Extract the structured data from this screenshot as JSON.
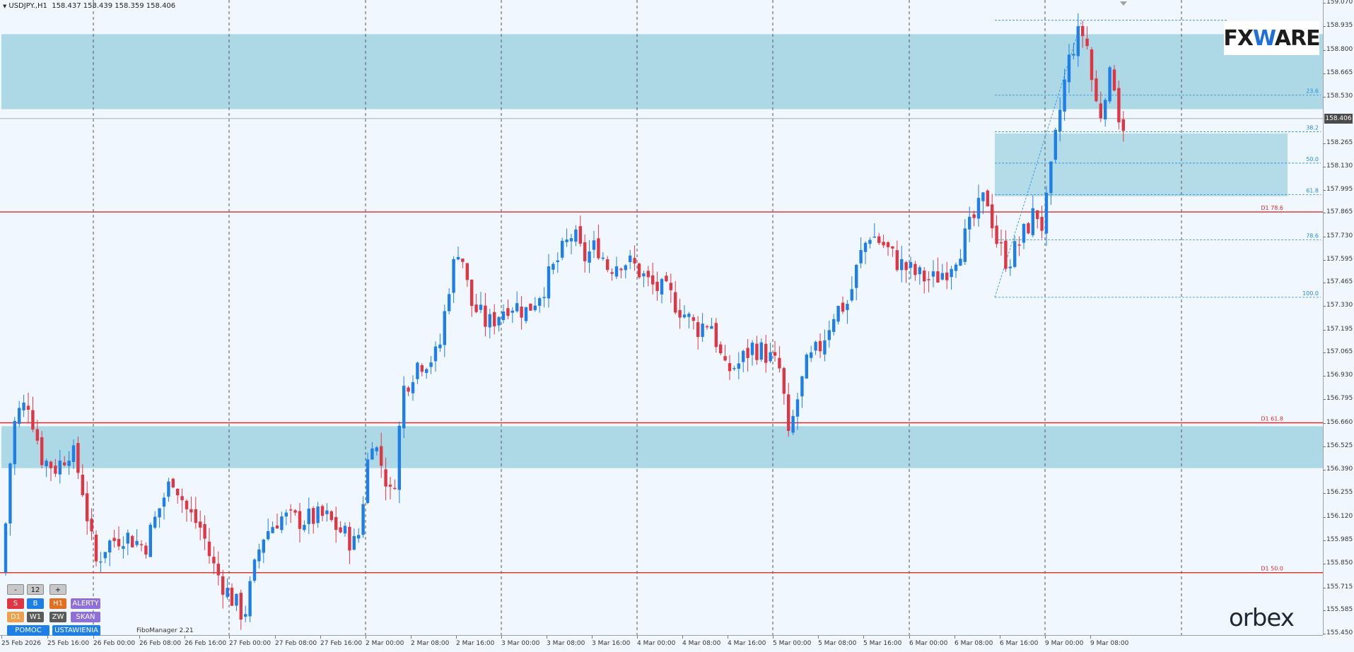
{
  "header": {
    "symbol": "USDJPY.,H1",
    "ohlc": "158.437 158.439 158.359 158.406"
  },
  "logos": {
    "fxmag_left": "FX",
    "fxmag_w": "W",
    "fxmag_right": "ARE",
    "orbex_left": "orbe",
    "orbex_x": "x"
  },
  "price_axis": {
    "labels": [
      "159.070",
      "158.935",
      "158.800",
      "158.665",
      "158.530",
      "158.265",
      "158.130",
      "157.995",
      "157.865",
      "157.730",
      "157.595",
      "157.465",
      "157.330",
      "157.195",
      "157.065",
      "156.930",
      "156.795",
      "156.660",
      "156.525",
      "156.390",
      "156.255",
      "156.120",
      "155.985",
      "155.850",
      "155.715",
      "155.585",
      "155.450"
    ],
    "current_price": "158.406"
  },
  "time_axis": {
    "labels": [
      "25 Feb 2026",
      "25 Feb 16:00",
      "26 Feb 00:00",
      "26 Feb 08:00",
      "26 Feb 16:00",
      "27 Feb 00:00",
      "27 Feb 08:00",
      "27 Feb 16:00",
      "2 Mar 00:00",
      "2 Mar 08:00",
      "2 Mar 16:00",
      "3 Mar 00:00",
      "3 Mar 08:00",
      "3 Mar 16:00",
      "4 Mar 00:00",
      "4 Mar 08:00",
      "4 Mar 16:00",
      "5 Mar 00:00",
      "5 Mar 08:00",
      "5 Mar 16:00",
      "6 Mar 00:00",
      "6 Mar 08:00",
      "6 Mar 16:00",
      "9 Mar 00:00",
      "9 Mar 08:00"
    ]
  },
  "levels": {
    "d1_786": "D1 78.6",
    "d1_618": "D1 61.8",
    "d1_50": "D1 50.0",
    "fib_236": "23.6",
    "fib_382": "38.2",
    "fib_50": "50.0",
    "fib_618": "61.8",
    "fib_786": "78.6",
    "fib_100": "100.0"
  },
  "panel": {
    "minus": "-",
    "value": "12",
    "plus": "+",
    "s": "S",
    "b": "B",
    "h1": "H1",
    "alerty": "ALERTY",
    "d1": "D1",
    "w1": "W1",
    "zw": "ZW",
    "skan": "SKAN",
    "pomoc": "POMOC",
    "ustawienia": "USTAWIENIA"
  },
  "fibo_manager": "FiboManager 2.21",
  "colors": {
    "background": "#f0f7fe",
    "zone": "#add8e6",
    "bull": "#1e7fe6",
    "bear": "#e03644",
    "level_red": "#d92b2b",
    "fib_line": "#2b8ad8"
  },
  "chart_data": {
    "type": "candlestick",
    "instrument": "USDJPY.",
    "timeframe": "H1",
    "ylim": [
      155.45,
      159.07
    ],
    "key_levels": [
      {
        "label": "D1 78.6",
        "value": 157.87
      },
      {
        "label": "D1 61.8",
        "value": 156.66
      },
      {
        "label": "D1 50.0",
        "value": 155.8
      }
    ],
    "fibonacci": [
      {
        "label": "23.6",
        "value": 158.54
      },
      {
        "label": "38.2",
        "value": 158.33
      },
      {
        "label": "50.0",
        "value": 158.15
      },
      {
        "label": "61.8",
        "value": 157.97
      },
      {
        "label": "78.6",
        "value": 157.71
      },
      {
        "label": "100.0",
        "value": 157.38
      }
    ],
    "zones": [
      {
        "from": 158.46,
        "to": 158.89
      },
      {
        "from": 157.96,
        "to": 158.32
      },
      {
        "from": 156.4,
        "to": 156.64
      }
    ],
    "last_price": 158.406
  }
}
